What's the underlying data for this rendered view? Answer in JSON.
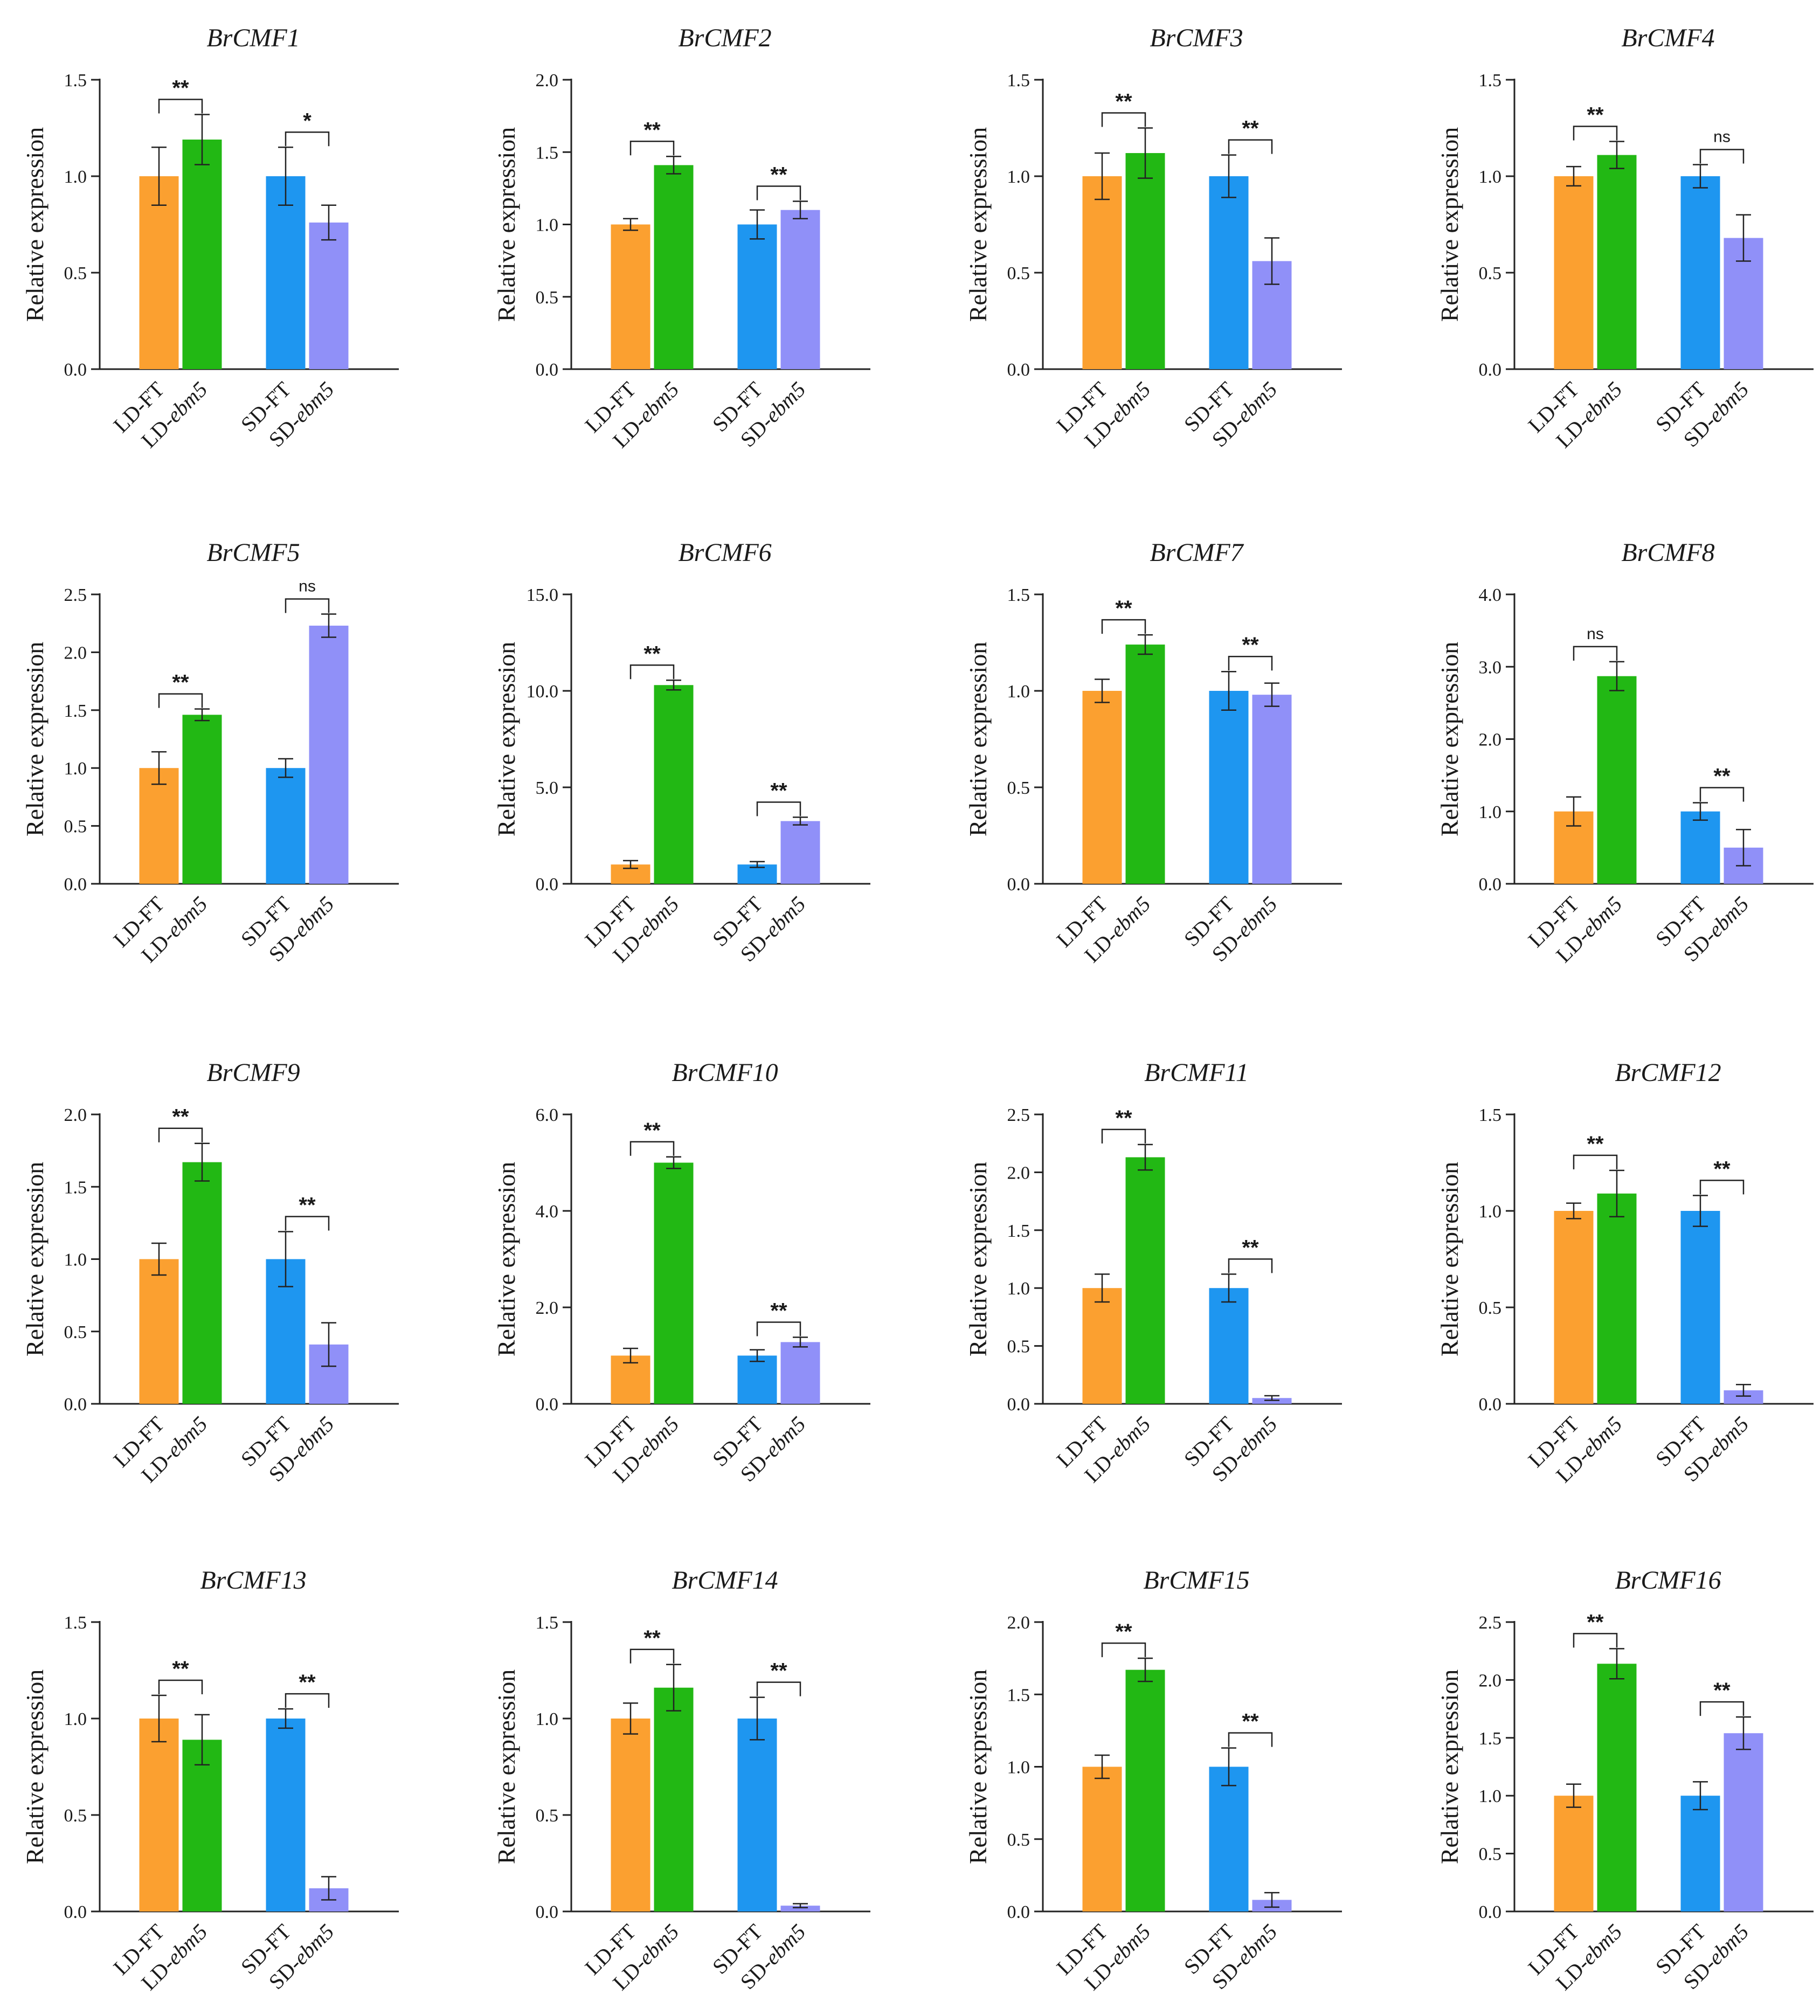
{
  "figure": {
    "ylabel": "Relative expression",
    "categories": [
      {
        "prefix": "LD-",
        "name": "FT",
        "italic": false
      },
      {
        "prefix": "LD-",
        "name": "ebm5",
        "italic": true
      },
      {
        "prefix": "SD-",
        "name": "FT",
        "italic": false
      },
      {
        "prefix": "SD-",
        "name": "ebm5",
        "italic": true
      }
    ],
    "colors": [
      "#FBA030",
      "#22B814",
      "#1E96F0",
      "#9090F8"
    ]
  },
  "chart_data": [
    {
      "type": "bar",
      "title": "BrCMF1",
      "categories": [
        "LD-FT",
        "LD-ebm5",
        "SD-FT",
        "SD-ebm5"
      ],
      "values": [
        1.0,
        1.19,
        1.0,
        0.76
      ],
      "errors": [
        0.15,
        0.13,
        0.15,
        0.09
      ],
      "ylim": [
        0,
        1.5
      ],
      "yticks": [
        "0.0",
        "0.5",
        "1.0",
        "1.5"
      ],
      "significance": [
        "**",
        "*"
      ],
      "ylabel": "Relative expression"
    },
    {
      "type": "bar",
      "title": "BrCMF2",
      "categories": [
        "LD-FT",
        "LD-ebm5",
        "SD-FT",
        "SD-ebm5"
      ],
      "values": [
        1.0,
        1.41,
        1.0,
        1.1
      ],
      "errors": [
        0.04,
        0.06,
        0.1,
        0.06
      ],
      "ylim": [
        0,
        2.0
      ],
      "yticks": [
        "0.0",
        "0.5",
        "1.0",
        "1.5",
        "2.0"
      ],
      "significance": [
        "**",
        "**"
      ],
      "ylabel": "Relative expression"
    },
    {
      "type": "bar",
      "title": "BrCMF3",
      "categories": [
        "LD-FT",
        "LD-ebm5",
        "SD-FT",
        "SD-ebm5"
      ],
      "values": [
        1.0,
        1.12,
        1.0,
        0.56
      ],
      "errors": [
        0.12,
        0.13,
        0.11,
        0.12
      ],
      "ylim": [
        0,
        1.5
      ],
      "yticks": [
        "0.0",
        "0.5",
        "1.0",
        "1.5"
      ],
      "significance": [
        "**",
        "**"
      ],
      "ylabel": "Relative expression"
    },
    {
      "type": "bar",
      "title": "BrCMF4",
      "categories": [
        "LD-FT",
        "LD-ebm5",
        "SD-FT",
        "SD-ebm5"
      ],
      "values": [
        1.0,
        1.11,
        1.0,
        0.68
      ],
      "errors": [
        0.05,
        0.07,
        0.06,
        0.12
      ],
      "ylim": [
        0,
        1.5
      ],
      "yticks": [
        "0.0",
        "0.5",
        "1.0",
        "1.5"
      ],
      "significance": [
        "**",
        "ns"
      ],
      "ylabel": "Relative expression"
    },
    {
      "type": "bar",
      "title": "BrCMF5",
      "categories": [
        "LD-FT",
        "LD-ebm5",
        "SD-FT",
        "SD-ebm5"
      ],
      "values": [
        1.0,
        1.46,
        1.0,
        2.23
      ],
      "errors": [
        0.14,
        0.05,
        0.08,
        0.1
      ],
      "ylim": [
        0,
        2.5
      ],
      "yticks": [
        "0.0",
        "0.5",
        "1.0",
        "1.5",
        "2.0",
        "2.5"
      ],
      "significance": [
        "**",
        "ns"
      ],
      "ylabel": "Relative expression"
    },
    {
      "type": "bar",
      "title": "BrCMF6",
      "categories": [
        "LD-FT",
        "LD-ebm5",
        "SD-FT",
        "SD-ebm5"
      ],
      "values": [
        1.0,
        10.3,
        1.0,
        3.25
      ],
      "errors": [
        0.2,
        0.25,
        0.15,
        0.2
      ],
      "ylim": [
        0,
        15.0
      ],
      "yticks": [
        "0.0",
        "5.0",
        "10.0",
        "15.0"
      ],
      "significance": [
        "**",
        "**"
      ],
      "ylabel": "Relative expression"
    },
    {
      "type": "bar",
      "title": "BrCMF7",
      "categories": [
        "LD-FT",
        "LD-ebm5",
        "SD-FT",
        "SD-ebm5"
      ],
      "values": [
        1.0,
        1.24,
        1.0,
        0.98
      ],
      "errors": [
        0.06,
        0.05,
        0.1,
        0.06
      ],
      "ylim": [
        0,
        1.5
      ],
      "yticks": [
        "0.0",
        "0.5",
        "1.0",
        "1.5"
      ],
      "significance": [
        "**",
        "**"
      ],
      "ylabel": "Relative expression"
    },
    {
      "type": "bar",
      "title": "BrCMF8",
      "categories": [
        "LD-FT",
        "LD-ebm5",
        "SD-FT",
        "SD-ebm5"
      ],
      "values": [
        1.0,
        2.87,
        1.0,
        0.5
      ],
      "errors": [
        0.2,
        0.2,
        0.12,
        0.25
      ],
      "ylim": [
        0,
        4.0
      ],
      "yticks": [
        "0.0",
        "1.0",
        "2.0",
        "3.0",
        "4.0"
      ],
      "significance": [
        "ns",
        "**"
      ],
      "ylabel": "Relative expression"
    },
    {
      "type": "bar",
      "title": "BrCMF9",
      "categories": [
        "LD-FT",
        "LD-ebm5",
        "SD-FT",
        "SD-ebm5"
      ],
      "values": [
        1.0,
        1.67,
        1.0,
        0.41
      ],
      "errors": [
        0.11,
        0.13,
        0.19,
        0.15
      ],
      "ylim": [
        0,
        2.0
      ],
      "yticks": [
        "0.0",
        "0.5",
        "1.0",
        "1.5",
        "2.0"
      ],
      "significance": [
        "**",
        "**"
      ],
      "ylabel": "Relative expression"
    },
    {
      "type": "bar",
      "title": "BrCMF10",
      "categories": [
        "LD-FT",
        "LD-ebm5",
        "SD-FT",
        "SD-ebm5"
      ],
      "values": [
        1.0,
        5.0,
        1.0,
        1.28
      ],
      "errors": [
        0.15,
        0.12,
        0.12,
        0.1
      ],
      "ylim": [
        0,
        6.0
      ],
      "yticks": [
        "0.0",
        "2.0",
        "4.0",
        "6.0"
      ],
      "significance": [
        "**",
        "**"
      ],
      "ylabel": "Relative expression"
    },
    {
      "type": "bar",
      "title": "BrCMF11",
      "categories": [
        "LD-FT",
        "LD-ebm5",
        "SD-FT",
        "SD-ebm5"
      ],
      "values": [
        1.0,
        2.13,
        1.0,
        0.05
      ],
      "errors": [
        0.12,
        0.11,
        0.12,
        0.02
      ],
      "ylim": [
        0,
        2.5
      ],
      "yticks": [
        "0.0",
        "0.5",
        "1.0",
        "1.5",
        "2.0",
        "2.5"
      ],
      "significance": [
        "**",
        "**"
      ],
      "ylabel": "Relative expression"
    },
    {
      "type": "bar",
      "title": "BrCMF12",
      "categories": [
        "LD-FT",
        "LD-ebm5",
        "SD-FT",
        "SD-ebm5"
      ],
      "values": [
        1.0,
        1.09,
        1.0,
        0.07
      ],
      "errors": [
        0.04,
        0.12,
        0.08,
        0.03
      ],
      "ylim": [
        0,
        1.5
      ],
      "yticks": [
        "0.0",
        "0.5",
        "1.0",
        "1.5"
      ],
      "significance": [
        "**",
        "**"
      ],
      "ylabel": "Relative expression"
    },
    {
      "type": "bar",
      "title": "BrCMF13",
      "categories": [
        "LD-FT",
        "LD-ebm5",
        "SD-FT",
        "SD-ebm5"
      ],
      "values": [
        1.0,
        0.89,
        1.0,
        0.12
      ],
      "errors": [
        0.12,
        0.13,
        0.05,
        0.06
      ],
      "ylim": [
        0,
        1.5
      ],
      "yticks": [
        "0.0",
        "0.5",
        "1.0",
        "1.5"
      ],
      "significance": [
        "**",
        "**"
      ],
      "ylabel": "Relative expression"
    },
    {
      "type": "bar",
      "title": "BrCMF14",
      "categories": [
        "LD-FT",
        "LD-ebm5",
        "SD-FT",
        "SD-ebm5"
      ],
      "values": [
        1.0,
        1.16,
        1.0,
        0.03
      ],
      "errors": [
        0.08,
        0.12,
        0.11,
        0.01
      ],
      "ylim": [
        0,
        1.5
      ],
      "yticks": [
        "0.0",
        "0.5",
        "1.0",
        "1.5"
      ],
      "significance": [
        "**",
        "**"
      ],
      "ylabel": "Relative expression"
    },
    {
      "type": "bar",
      "title": "BrCMF15",
      "categories": [
        "LD-FT",
        "LD-ebm5",
        "SD-FT",
        "SD-ebm5"
      ],
      "values": [
        1.0,
        1.67,
        1.0,
        0.08
      ],
      "errors": [
        0.08,
        0.08,
        0.13,
        0.05
      ],
      "ylim": [
        0,
        2.0
      ],
      "yticks": [
        "0.0",
        "0.5",
        "1.0",
        "1.5",
        "2.0"
      ],
      "significance": [
        "**",
        "**"
      ],
      "ylabel": "Relative expression"
    },
    {
      "type": "bar",
      "title": "BrCMF16",
      "categories": [
        "LD-FT",
        "LD-ebm5",
        "SD-FT",
        "SD-ebm5"
      ],
      "values": [
        1.0,
        2.14,
        1.0,
        1.54
      ],
      "errors": [
        0.1,
        0.13,
        0.12,
        0.14
      ],
      "ylim": [
        0,
        2.5
      ],
      "yticks": [
        "0.0",
        "0.5",
        "1.0",
        "1.5",
        "2.0",
        "2.5"
      ],
      "significance": [
        "**",
        "**"
      ],
      "ylabel": "Relative expression"
    }
  ]
}
